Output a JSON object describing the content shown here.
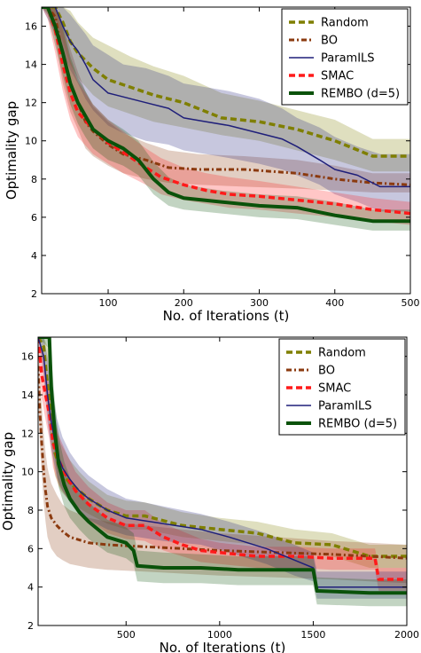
{
  "chart_data": [
    {
      "type": "line",
      "xlabel": "No. of Iterations (t)",
      "ylabel": "Optimality gap",
      "xlim": [
        12,
        500
      ],
      "ylim": [
        2,
        17
      ],
      "xticks": [
        100,
        200,
        300,
        400,
        500
      ],
      "xtick_labels": [
        "100",
        "200",
        "300",
        "400",
        "500"
      ],
      "yticks": [
        2,
        4,
        6,
        8,
        10,
        12,
        14,
        16
      ],
      "ytick_labels": [
        "2",
        "4",
        "6",
        "8",
        "10",
        "12",
        "14",
        "16"
      ],
      "legend_position": "top-right",
      "grid": false,
      "series": [
        {
          "name": "Random",
          "color": "#7f7f00",
          "dash": "dashed",
          "width": 3.5,
          "x": [
            12,
            30,
            40,
            50,
            60,
            80,
            100,
            130,
            160,
            200,
            250,
            300,
            350,
            400,
            450,
            500
          ],
          "y": [
            17,
            17,
            16.2,
            15.2,
            14.6,
            13.8,
            13.2,
            12.8,
            12.4,
            12.0,
            11.2,
            11.0,
            10.6,
            10.0,
            9.2,
            9.2
          ],
          "upper": [
            17,
            17,
            17,
            16.8,
            16.2,
            15.4,
            15.0,
            14.4,
            13.9,
            13.4,
            12.5,
            12.1,
            11.6,
            11.1,
            10.1,
            10.1
          ],
          "lower": [
            17,
            16.4,
            15.2,
            14.0,
            13.3,
            12.4,
            11.8,
            11.4,
            11.0,
            10.7,
            10.3,
            10.0,
            9.5,
            9.0,
            8.4,
            8.4
          ]
        },
        {
          "name": "BO",
          "color": "#8b3a0f",
          "dash": "dashdot",
          "width": 3,
          "x": [
            12,
            20,
            30,
            40,
            50,
            60,
            70,
            80,
            100,
            120,
            150,
            180,
            220,
            280,
            350,
            400,
            450,
            500
          ],
          "y": [
            17,
            17,
            16.5,
            14.5,
            13.0,
            12.0,
            11.0,
            10.5,
            9.8,
            9.3,
            9.0,
            8.6,
            8.5,
            8.5,
            8.3,
            8.0,
            7.8,
            7.7
          ],
          "upper": [
            17,
            17,
            17,
            16.2,
            14.8,
            13.6,
            12.6,
            11.8,
            11.0,
            10.4,
            9.9,
            9.5,
            9.3,
            9.2,
            9.0,
            8.7,
            8.3,
            8.3
          ],
          "lower": [
            17,
            17,
            15.4,
            13.0,
            11.5,
            10.6,
            9.6,
            9.2,
            8.7,
            8.3,
            8.0,
            7.8,
            7.7,
            7.6,
            7.5,
            7.4,
            7.3,
            7.3
          ]
        },
        {
          "name": "ParamILS",
          "color": "#1f1f7a",
          "dash": "solid",
          "width": 1.5,
          "x": [
            12,
            30,
            40,
            50,
            60,
            70,
            80,
            100,
            120,
            150,
            180,
            200,
            230,
            260,
            300,
            330,
            350,
            380,
            400,
            430,
            460,
            500
          ],
          "y": [
            17,
            17,
            16.0,
            15.2,
            14.7,
            14.0,
            13.2,
            12.5,
            12.3,
            12.0,
            11.7,
            11.2,
            11.0,
            10.8,
            10.4,
            10.1,
            9.7,
            9.0,
            8.5,
            8.2,
            7.6,
            7.6
          ],
          "upper": [
            17,
            17,
            17,
            16.6,
            16.1,
            15.6,
            15.0,
            14.5,
            14.0,
            13.8,
            13.4,
            13.0,
            12.8,
            12.6,
            12.2,
            11.7,
            11.2,
            10.7,
            10.2,
            9.7,
            9.3,
            9.3
          ],
          "lower": [
            17,
            15.6,
            14.6,
            13.7,
            13.0,
            12.2,
            11.6,
            10.8,
            10.4,
            10.0,
            9.8,
            9.5,
            9.3,
            9.1,
            8.8,
            8.5,
            8.2,
            7.7,
            7.2,
            6.8,
            6.3,
            6.3
          ]
        },
        {
          "name": "SMAC",
          "color": "#ff1a1a",
          "dash": "dashed",
          "width": 3.5,
          "x": [
            12,
            20,
            30,
            40,
            50,
            60,
            80,
            100,
            120,
            150,
            170,
            200,
            230,
            260,
            300,
            350,
            400,
            450,
            500
          ],
          "y": [
            17,
            17,
            15.8,
            14.0,
            12.5,
            11.5,
            10.6,
            9.9,
            9.4,
            8.6,
            8.1,
            7.7,
            7.4,
            7.2,
            7.1,
            6.9,
            6.7,
            6.4,
            6.2
          ],
          "upper": [
            17,
            17,
            17,
            15.8,
            14.2,
            13.1,
            11.9,
            11.1,
            10.5,
            9.6,
            9.1,
            8.6,
            8.3,
            8.1,
            7.9,
            7.6,
            7.3,
            7.0,
            6.8
          ],
          "lower": [
            17,
            16.4,
            14.6,
            12.6,
            11.1,
            10.2,
            9.3,
            8.8,
            8.3,
            7.7,
            7.2,
            6.9,
            6.7,
            6.5,
            6.4,
            6.2,
            6.0,
            5.8,
            5.6
          ]
        },
        {
          "name": "REMBO (d=5)",
          "color": "#0a520a",
          "dash": "solid",
          "width": 4,
          "x": [
            12,
            20,
            30,
            40,
            50,
            60,
            70,
            80,
            100,
            120,
            140,
            160,
            180,
            200,
            250,
            300,
            350,
            400,
            450,
            500
          ],
          "y": [
            17,
            17,
            16.0,
            14.6,
            13.0,
            12.0,
            11.3,
            10.6,
            10.0,
            9.6,
            9.0,
            8.0,
            7.3,
            7.0,
            6.8,
            6.6,
            6.5,
            6.1,
            5.8,
            5.8
          ],
          "upper": [
            17,
            17,
            17,
            16.0,
            14.4,
            13.3,
            12.6,
            11.9,
            11.1,
            10.6,
            10.0,
            8.9,
            8.1,
            7.7,
            7.4,
            7.2,
            7.1,
            6.8,
            6.4,
            6.4
          ],
          "lower": [
            17,
            16.6,
            15.0,
            13.4,
            11.9,
            10.9,
            10.2,
            9.6,
            9.0,
            8.7,
            8.2,
            7.2,
            6.6,
            6.4,
            6.2,
            6.0,
            5.9,
            5.6,
            5.3,
            5.3
          ]
        }
      ]
    },
    {
      "type": "line",
      "xlabel": "No. of Iterations (t)",
      "ylabel": "Optimality gap",
      "xlim": [
        30,
        2000
      ],
      "ylim": [
        2,
        17
      ],
      "xticks": [
        500,
        1000,
        1500,
        2000
      ],
      "xtick_labels": [
        "500",
        "1000",
        "1500",
        "2000"
      ],
      "yticks": [
        2,
        4,
        6,
        8,
        10,
        12,
        14,
        16
      ],
      "ytick_labels": [
        "2",
        "4",
        "6",
        "8",
        "10",
        "12",
        "14",
        "16"
      ],
      "legend_position": "top-right",
      "grid": false,
      "series": [
        {
          "name": "Random",
          "color": "#7f7f00",
          "dash": "dashed",
          "width": 3.5,
          "x": [
            30,
            60,
            80,
            100,
            120,
            150,
            200,
            250,
            300,
            400,
            500,
            600,
            800,
            1000,
            1200,
            1400,
            1600,
            1800,
            2000
          ],
          "y": [
            17,
            16.5,
            14.5,
            12.6,
            11.0,
            10.0,
            9.4,
            9.0,
            8.6,
            8.0,
            7.7,
            7.7,
            7.2,
            7.0,
            6.8,
            6.3,
            6.2,
            5.6,
            5.6
          ],
          "upper": [
            17,
            17,
            16.5,
            14.5,
            12.8,
            11.5,
            10.6,
            10.0,
            9.5,
            8.8,
            8.5,
            8.4,
            7.9,
            7.6,
            7.4,
            7.0,
            6.8,
            6.2,
            6.2
          ],
          "lower": [
            17,
            15.6,
            13.2,
            11.3,
            9.8,
            9.0,
            8.5,
            8.1,
            7.8,
            7.3,
            7.0,
            7.0,
            6.6,
            6.4,
            6.2,
            5.7,
            5.6,
            5.0,
            5.0
          ]
        },
        {
          "name": "BO",
          "color": "#8b3a0f",
          "dash": "dashdot",
          "width": 3,
          "x": [
            30,
            40,
            50,
            60,
            70,
            80,
            100,
            130,
            160,
            200,
            300,
            400,
            600,
            800,
            1000,
            1300,
            1600,
            1800,
            2000
          ],
          "y": [
            15.5,
            13.0,
            11.4,
            10.0,
            9.0,
            8.2,
            7.6,
            7.2,
            6.9,
            6.6,
            6.3,
            6.2,
            6.1,
            6.0,
            5.9,
            5.8,
            5.7,
            5.6,
            5.5
          ],
          "upper": [
            17,
            15.0,
            13.4,
            12.0,
            11.0,
            10.2,
            9.4,
            8.8,
            8.3,
            8.0,
            7.6,
            7.4,
            7.2,
            7.0,
            6.8,
            6.6,
            6.4,
            6.3,
            6.2
          ],
          "lower": [
            14.0,
            11.4,
            9.8,
            8.4,
            7.4,
            6.6,
            6.0,
            5.6,
            5.4,
            5.2,
            5.0,
            4.9,
            4.8,
            4.7,
            4.6,
            4.5,
            4.4,
            4.3,
            4.2
          ]
        },
        {
          "name": "SMAC",
          "color": "#ff1a1a",
          "dash": "dashed",
          "width": 3.5,
          "x": [
            30,
            50,
            70,
            90,
            110,
            140,
            180,
            230,
            300,
            400,
            500,
            600,
            700,
            800,
            900,
            1000,
            1200,
            1400,
            1600,
            1800,
            1830,
            1850,
            2000
          ],
          "y": [
            17,
            15.0,
            14.0,
            13.0,
            11.5,
            10.6,
            9.8,
            9.0,
            8.3,
            7.6,
            7.2,
            7.2,
            6.6,
            6.2,
            5.9,
            5.8,
            5.6,
            5.6,
            5.5,
            5.5,
            5.5,
            4.4,
            4.4
          ],
          "upper": [
            17,
            16.4,
            15.4,
            14.4,
            12.9,
            11.9,
            11.0,
            10.0,
            9.2,
            8.4,
            8.0,
            8.0,
            7.3,
            6.9,
            6.5,
            6.3,
            6.1,
            6.1,
            6.0,
            6.0,
            6.0,
            5.0,
            5.0
          ],
          "lower": [
            16.4,
            13.8,
            12.7,
            11.7,
            10.2,
            9.3,
            8.7,
            8.1,
            7.5,
            6.8,
            6.5,
            6.4,
            5.9,
            5.6,
            5.3,
            5.2,
            5.0,
            5.0,
            4.9,
            4.9,
            4.9,
            3.8,
            3.8
          ]
        },
        {
          "name": "ParamILS",
          "color": "#1f1f7a",
          "dash": "solid",
          "width": 1.5,
          "x": [
            30,
            60,
            80,
            100,
            130,
            160,
            200,
            250,
            300,
            400,
            500,
            700,
            900,
            1050,
            1250,
            1400,
            1500,
            1520,
            1800,
            2000
          ],
          "y": [
            17,
            16.0,
            14.0,
            12.6,
            11.0,
            10.2,
            9.6,
            9.0,
            8.6,
            8.0,
            7.6,
            7.3,
            7.0,
            6.6,
            6.0,
            5.4,
            5.0,
            4.0,
            4.0,
            4.0
          ],
          "upper": [
            17,
            17,
            16.0,
            14.6,
            12.8,
            11.8,
            11.0,
            10.3,
            9.8,
            9.1,
            8.6,
            8.2,
            7.8,
            7.4,
            6.8,
            6.2,
            5.8,
            4.8,
            4.8,
            4.8
          ],
          "lower": [
            17,
            15.0,
            12.6,
            11.2,
            9.7,
            9.0,
            8.4,
            7.9,
            7.5,
            7.0,
            6.7,
            6.4,
            6.2,
            5.8,
            5.2,
            4.6,
            4.3,
            3.4,
            3.4,
            3.4
          ]
        },
        {
          "name": "REMBO (d=5)",
          "color": "#0a520a",
          "dash": "solid",
          "width": 4,
          "x": [
            30,
            90,
            100,
            120,
            140,
            170,
            200,
            250,
            300,
            400,
            500,
            540,
            560,
            700,
            900,
            1100,
            1300,
            1500,
            1520,
            1800,
            2000
          ],
          "y": [
            17,
            17,
            14.4,
            12.0,
            10.4,
            9.3,
            8.6,
            7.9,
            7.4,
            6.6,
            6.3,
            5.9,
            5.1,
            5.0,
            5.0,
            4.9,
            4.9,
            4.9,
            3.8,
            3.7,
            3.7
          ],
          "upper": [
            17,
            17,
            16.0,
            13.6,
            11.8,
            10.5,
            9.7,
            8.9,
            8.4,
            7.5,
            7.1,
            6.8,
            5.9,
            5.8,
            5.7,
            5.6,
            5.6,
            5.6,
            4.5,
            4.4,
            4.4
          ],
          "lower": [
            17,
            16.4,
            13.0,
            10.7,
            9.2,
            8.2,
            7.6,
            7.0,
            6.5,
            5.8,
            5.5,
            5.2,
            4.3,
            4.2,
            4.2,
            4.1,
            4.1,
            4.1,
            3.1,
            3.0,
            3.0
          ]
        }
      ]
    }
  ]
}
